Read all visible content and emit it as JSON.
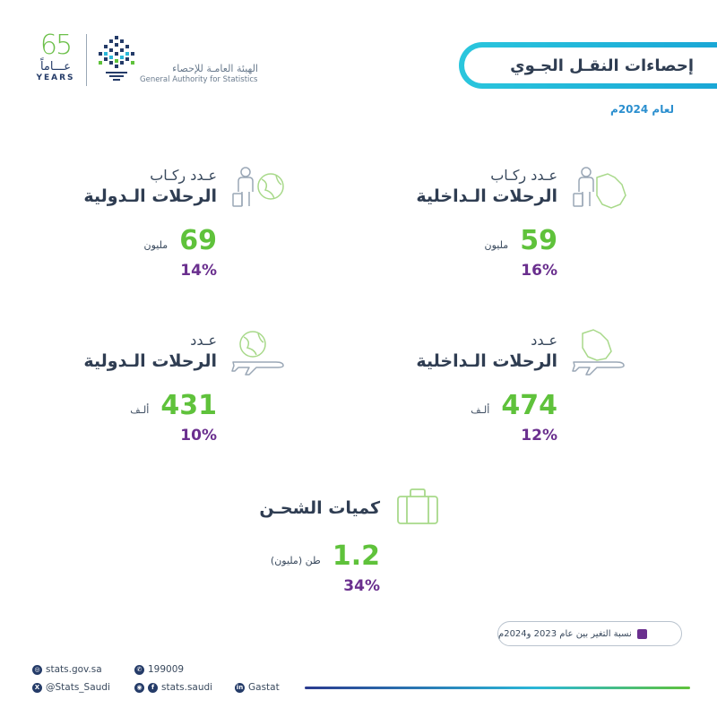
{
  "header": {
    "anniversary_number": "65",
    "anniversary_ar": "عـــاماً",
    "anniversary_en": "YEARS",
    "org_name_ar": "الهيئة العامـة للإحصاء",
    "org_name_en": "General Authority for Statistics",
    "title": "إحصاءات النقـل الجـوي",
    "year": "لعام 2024م"
  },
  "stats": {
    "domestic_passengers": {
      "label_top": "عـدد ركـاب",
      "label_main": "الرحلات الـداخلية",
      "value": "59",
      "unit": "مليون",
      "change": "16%",
      "icon": "passenger-map-icon"
    },
    "international_passengers": {
      "label_top": "عـدد ركـاب",
      "label_main": "الرحلات الـدولية",
      "value": "69",
      "unit": "مليون",
      "change": "14%",
      "icon": "passenger-globe-icon"
    },
    "domestic_flights": {
      "label_top": "عـدد",
      "label_main": "الرحلات الـداخلية",
      "value": "474",
      "unit": "ألـف",
      "change": "12%",
      "icon": "plane-map-icon"
    },
    "international_flights": {
      "label_top": "عـدد",
      "label_main": "الرحلات الـدولية",
      "value": "431",
      "unit": "ألـف",
      "change": "10%",
      "icon": "plane-globe-icon"
    },
    "cargo": {
      "label_top": "",
      "label_main": "كميات الشحـن",
      "value": "1.2",
      "unit": "طن (مليون)",
      "change": "34%",
      "icon": "cargo-box-icon"
    }
  },
  "legend": {
    "text": "نسبة التغير بين عام 2023 و2024م"
  },
  "footer": {
    "website": "stats.gov.sa",
    "phone": "199009",
    "twitter": "@Stats_Saudi",
    "instagram_facebook": "stats.saudi",
    "linkedin": "Gastat"
  },
  "colors": {
    "accent_green": "#5fc23b",
    "change_purple": "#6a2f8e",
    "banner_cyan": "#1aa7d6",
    "navy": "#243b68"
  }
}
